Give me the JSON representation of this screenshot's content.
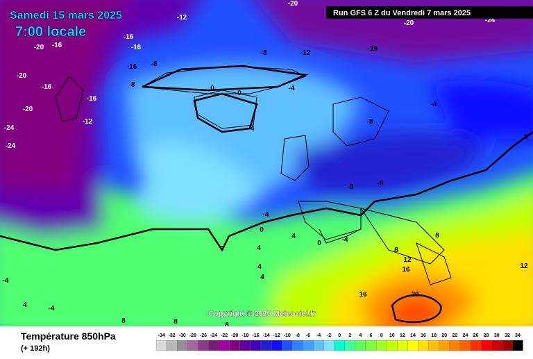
{
  "header": {
    "date": "Samedi 15 mars 2025",
    "time": "7:00 locale",
    "run_info": "Run GFS 6 Z du Vendredi 7 mars 2025"
  },
  "copyright": "Copyright © 2025 Meteociel.fr",
  "footer": {
    "title": "Température 850hPa",
    "step": "(+ 192h)"
  },
  "legend": {
    "values": [
      -34,
      -32,
      -30,
      -28,
      -26,
      -24,
      -22,
      -20,
      -18,
      -16,
      -14,
      -12,
      -10,
      -8,
      -6,
      -4,
      -2,
      0,
      2,
      4,
      6,
      8,
      10,
      12,
      14,
      16,
      18,
      20,
      22,
      24,
      26,
      28,
      30,
      32,
      34
    ],
    "colors": [
      "#d8d8d8",
      "#b8b8b8",
      "#9a8a9a",
      "#a06aa0",
      "#8a3a8a",
      "#7a1a7a",
      "#a000a0",
      "#800080",
      "#6000a0",
      "#4000c0",
      "#2020d0",
      "#1010ff",
      "#2050ff",
      "#3080ff",
      "#40a0ff",
      "#60c0ff",
      "#80e0ff",
      "#00ffd0",
      "#40ffa0",
      "#60ff60",
      "#80ff40",
      "#a0ff20",
      "#c0ff00",
      "#e0ff00",
      "#ffff00",
      "#ffe000",
      "#ffc000",
      "#ffa000",
      "#ff8000",
      "#ff6000",
      "#ff3000",
      "#ff0000",
      "#d00000",
      "#a00000",
      "#000000"
    ]
  },
  "contour_labels": [
    "-16",
    "-16",
    "-16",
    "-12",
    "-8",
    "-8",
    "-16",
    "-12",
    "-20",
    "-16",
    "-20",
    "-24",
    "-24",
    "-20",
    "-16",
    "-8",
    "-12",
    "-16",
    "0",
    "0",
    "-4",
    "-4",
    "-8",
    "-4",
    "0",
    "-8",
    "-8",
    "-4",
    "0",
    "0",
    "4",
    "0",
    "-4",
    "4",
    "8",
    "12",
    "16",
    "16",
    "20",
    "4",
    "4",
    "-4",
    "4",
    "-4",
    "8",
    "8",
    "8",
    "12",
    "8",
    "-20",
    "-20",
    "-24"
  ]
}
